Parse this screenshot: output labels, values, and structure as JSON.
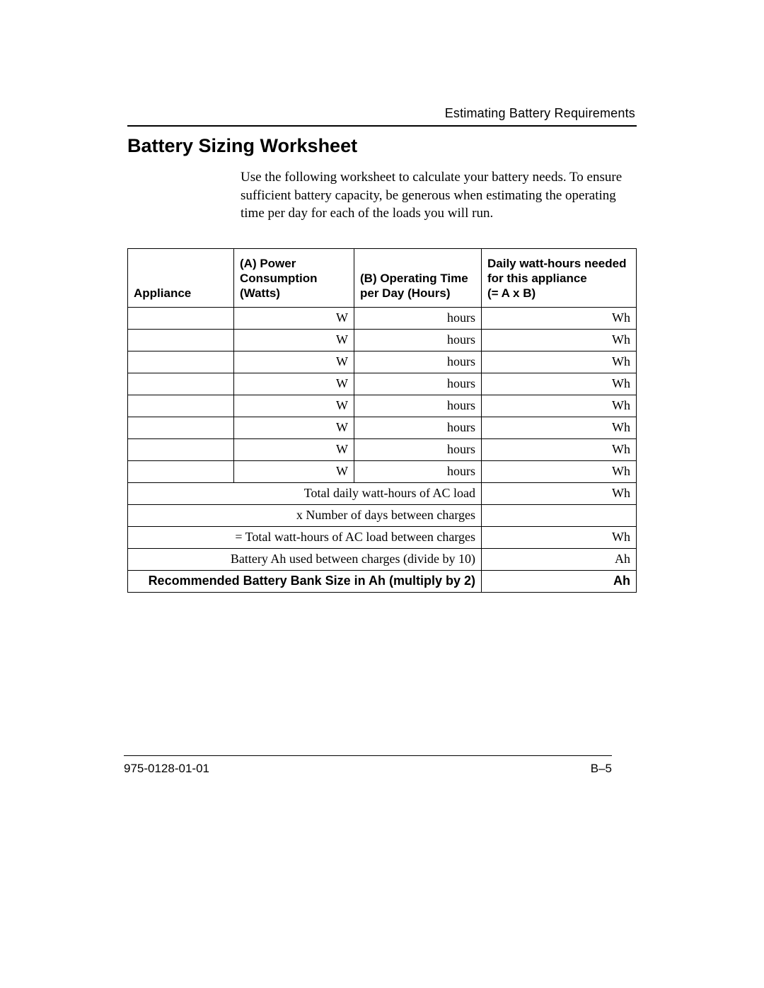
{
  "header": {
    "running_head": "Estimating Battery Requirements"
  },
  "title": "Battery Sizing Worksheet",
  "intro": "Use the following worksheet to calculate your battery needs. To ensure sufficient battery capacity, be generous when estimating the operating time per day for each of the loads you will run.",
  "table": {
    "columns": {
      "appliance": "Appliance",
      "power": "(A) Power Consumption (Watts)",
      "optime": "(B) Operating Time per Day (Hours)",
      "daily_wh": "Daily watt-hours needed for this appliance\n(= A x B)"
    },
    "units": {
      "w": "W",
      "h": "hours",
      "wh": "Wh",
      "ah": "Ah"
    },
    "row_count": 8,
    "summary": {
      "total_label": "Total daily watt-hours of AC load",
      "days_label": "x Number of days between charges",
      "total_between_label": "= Total watt-hours of AC load between charges",
      "ah_label": "Battery Ah used between charges (divide by 10)",
      "final_label": "Recommended Battery Bank Size in Ah (multiply by 2)"
    }
  },
  "footer": {
    "docnum": "975-0128-01-01",
    "page": "B–5"
  },
  "style": {
    "text_color": "#000000",
    "background": "#ffffff",
    "rule_color": "#000000",
    "title_fontsize_pt": 20,
    "body_fontsize_pt": 14,
    "header_font": "sans-serif",
    "body_font": "serif"
  }
}
